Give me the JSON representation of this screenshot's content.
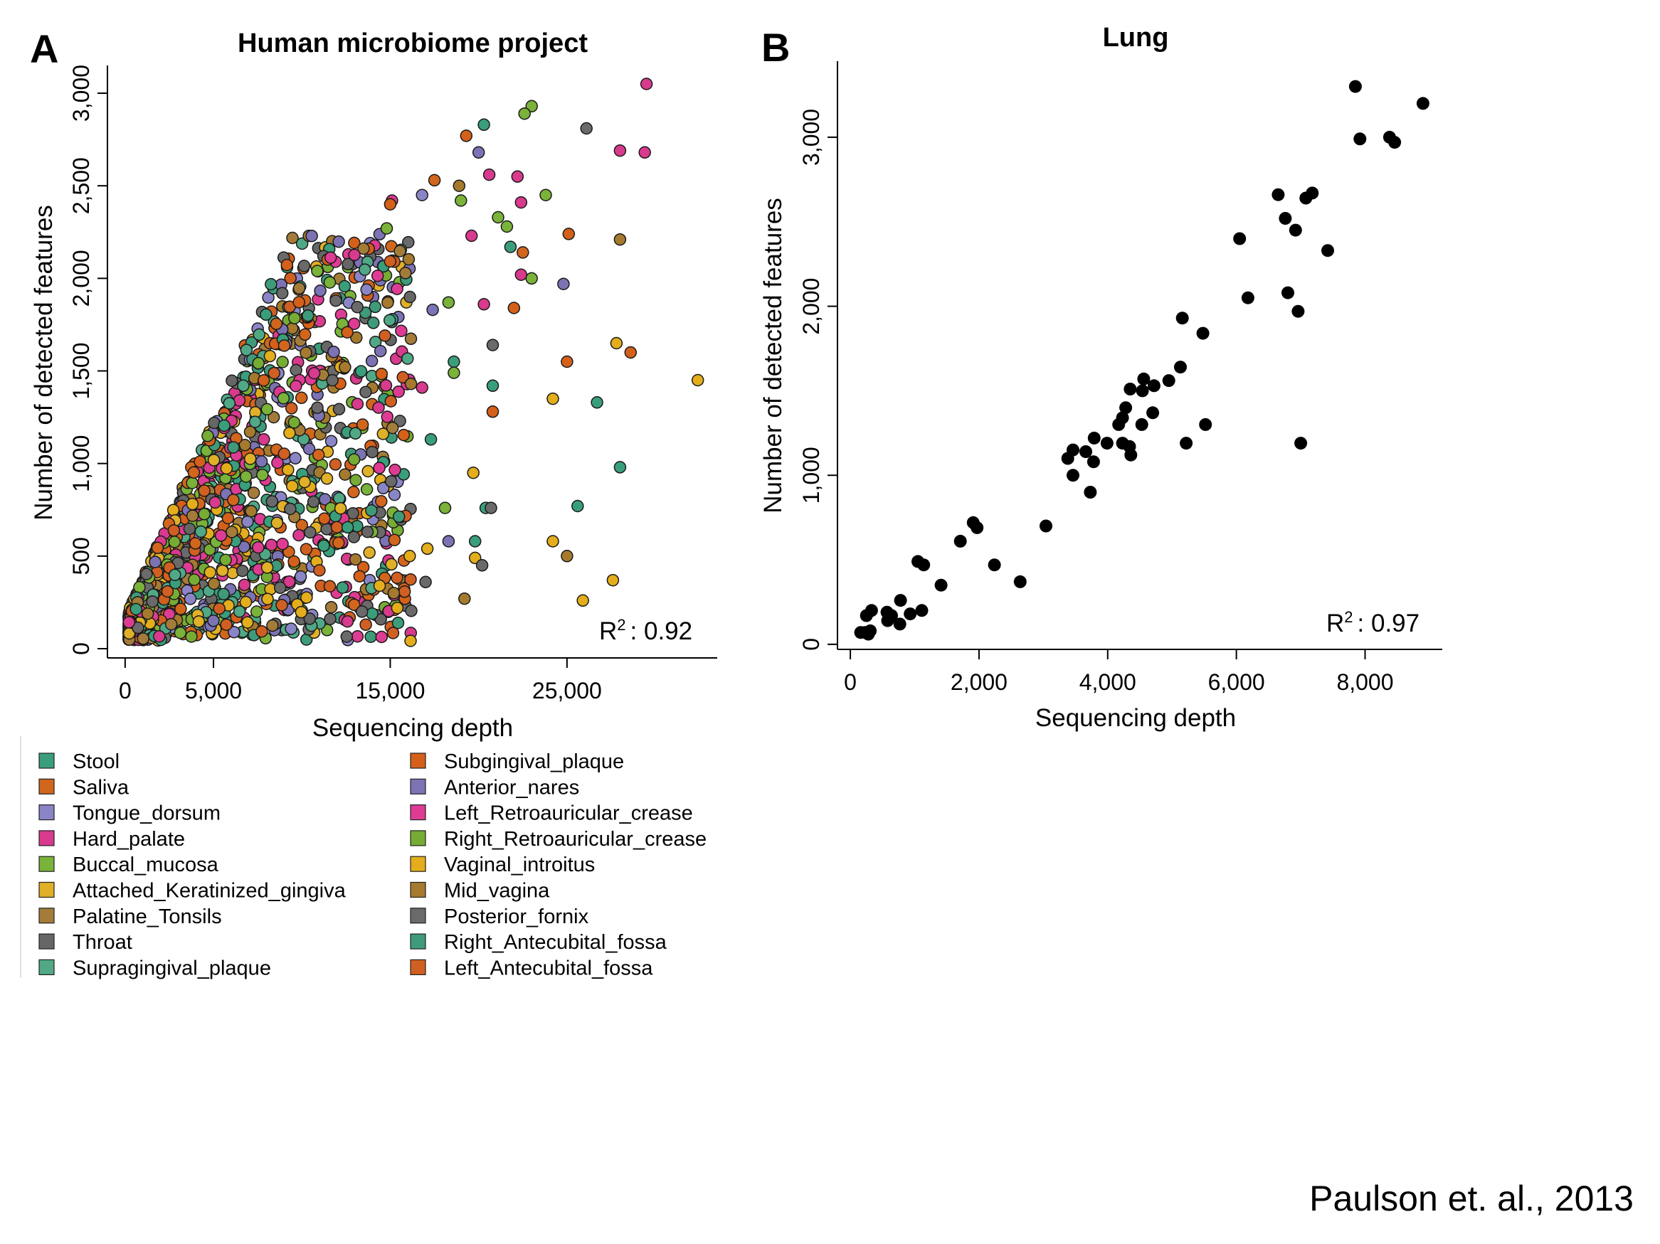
{
  "chart_data": [
    {
      "type": "scatter",
      "panel": "A",
      "title": "Human microbiome project",
      "xlabel": "Sequencing depth",
      "ylabel": "Number of detected features",
      "xticks": [
        "0",
        "5,000",
        "15,000",
        "25,000"
      ],
      "xtick_values": [
        0,
        5000,
        15000,
        25000
      ],
      "yticks": [
        "0",
        "500",
        "1,000",
        "1,500",
        "2,000",
        "2,500",
        "3,000"
      ],
      "ytick_values": [
        0,
        500,
        1000,
        1500,
        2000,
        2500,
        3000
      ],
      "xlim": [
        -1000,
        33500
      ],
      "ylim": [
        -50,
        3150
      ],
      "r2_label": "R",
      "r2_sup": "2",
      "r2_value": ": 0.92",
      "legend_position": "below",
      "series": [
        {
          "name": "Stool",
          "color": "#3a9e7a"
        },
        {
          "name": "Subgingival_plaque",
          "color": "#d4601a"
        },
        {
          "name": "Saliva",
          "color": "#d2661d"
        },
        {
          "name": "Anterior_nares",
          "color": "#7c73b5"
        },
        {
          "name": "Tongue_dorsum",
          "color": "#8a85c6"
        },
        {
          "name": "Left_Retroauricular_crease",
          "color": "#de3c93"
        },
        {
          "name": "Hard_palate",
          "color": "#d83a8d"
        },
        {
          "name": "Right_Retroauricular_crease",
          "color": "#76ac34"
        },
        {
          "name": "Buccal_mucosa",
          "color": "#7ab23a"
        },
        {
          "name": "Vaginal_introitus",
          "color": "#e3ad1c"
        },
        {
          "name": "Attached_Keratinized_gingiva",
          "color": "#e0b028"
        },
        {
          "name": "Mid_vagina",
          "color": "#a57a2e"
        },
        {
          "name": "Palatine_Tonsils",
          "color": "#a47c3a"
        },
        {
          "name": "Posterior_fornix",
          "color": "#6a6a6a"
        },
        {
          "name": "Throat",
          "color": "#666666"
        },
        {
          "name": "Right_Antecubital_fossa",
          "color": "#3f9a7a"
        },
        {
          "name": "Supragingival_plaque",
          "color": "#50a886"
        },
        {
          "name": "Left_Antecubital_fossa",
          "color": "#d06022"
        }
      ],
      "highlight_points": [
        {
          "x": 29500,
          "y": 3050,
          "c": 6
        },
        {
          "x": 23000,
          "y": 2930,
          "c": 8
        },
        {
          "x": 22600,
          "y": 2890,
          "c": 8
        },
        {
          "x": 20300,
          "y": 2830,
          "c": 0
        },
        {
          "x": 26100,
          "y": 2810,
          "c": 13
        },
        {
          "x": 19300,
          "y": 2770,
          "c": 1
        },
        {
          "x": 28000,
          "y": 2690,
          "c": 6
        },
        {
          "x": 29400,
          "y": 2680,
          "c": 6
        },
        {
          "x": 20000,
          "y": 2680,
          "c": 3
        },
        {
          "x": 20600,
          "y": 2560,
          "c": 6
        },
        {
          "x": 22200,
          "y": 2550,
          "c": 6
        },
        {
          "x": 17500,
          "y": 2530,
          "c": 2
        },
        {
          "x": 18900,
          "y": 2500,
          "c": 11
        },
        {
          "x": 23800,
          "y": 2450,
          "c": 8
        },
        {
          "x": 16800,
          "y": 2450,
          "c": 4
        },
        {
          "x": 15100,
          "y": 2420,
          "c": 6
        },
        {
          "x": 19000,
          "y": 2420,
          "c": 8
        },
        {
          "x": 22400,
          "y": 2410,
          "c": 6
        },
        {
          "x": 15000,
          "y": 2400,
          "c": 1
        },
        {
          "x": 21100,
          "y": 2330,
          "c": 8
        },
        {
          "x": 21600,
          "y": 2280,
          "c": 8
        },
        {
          "x": 14800,
          "y": 2270,
          "c": 8
        },
        {
          "x": 25100,
          "y": 2240,
          "c": 1
        },
        {
          "x": 19600,
          "y": 2230,
          "c": 6
        },
        {
          "x": 28000,
          "y": 2210,
          "c": 11
        },
        {
          "x": 21800,
          "y": 2170,
          "c": 0
        },
        {
          "x": 22500,
          "y": 2140,
          "c": 2
        },
        {
          "x": 23000,
          "y": 2000,
          "c": 8
        },
        {
          "x": 24800,
          "y": 1970,
          "c": 3
        },
        {
          "x": 22400,
          "y": 2020,
          "c": 6
        },
        {
          "x": 20300,
          "y": 1860,
          "c": 6
        },
        {
          "x": 22000,
          "y": 1840,
          "c": 1
        },
        {
          "x": 17400,
          "y": 1830,
          "c": 3
        },
        {
          "x": 18300,
          "y": 1870,
          "c": 8
        },
        {
          "x": 20800,
          "y": 1640,
          "c": 13
        },
        {
          "x": 27800,
          "y": 1650,
          "c": 9
        },
        {
          "x": 28600,
          "y": 1600,
          "c": 1
        },
        {
          "x": 25000,
          "y": 1550,
          "c": 1
        },
        {
          "x": 18600,
          "y": 1550,
          "c": 0
        },
        {
          "x": 18600,
          "y": 1490,
          "c": 8
        },
        {
          "x": 32400,
          "y": 1450,
          "c": 9
        },
        {
          "x": 20800,
          "y": 1420,
          "c": 0
        },
        {
          "x": 16800,
          "y": 1410,
          "c": 6
        },
        {
          "x": 24200,
          "y": 1350,
          "c": 9
        },
        {
          "x": 26700,
          "y": 1330,
          "c": 0
        },
        {
          "x": 20800,
          "y": 1280,
          "c": 1
        },
        {
          "x": 17300,
          "y": 1130,
          "c": 0
        },
        {
          "x": 19700,
          "y": 950,
          "c": 9
        },
        {
          "x": 28000,
          "y": 980,
          "c": 0
        },
        {
          "x": 20400,
          "y": 760,
          "c": 0
        },
        {
          "x": 20700,
          "y": 760,
          "c": 13
        },
        {
          "x": 25600,
          "y": 770,
          "c": 0
        },
        {
          "x": 18100,
          "y": 760,
          "c": 8
        },
        {
          "x": 18300,
          "y": 580,
          "c": 3
        },
        {
          "x": 19800,
          "y": 580,
          "c": 0
        },
        {
          "x": 24200,
          "y": 580,
          "c": 9
        },
        {
          "x": 25000,
          "y": 500,
          "c": 11
        },
        {
          "x": 19800,
          "y": 490,
          "c": 9
        },
        {
          "x": 20200,
          "y": 450,
          "c": 13
        },
        {
          "x": 17100,
          "y": 540,
          "c": 9
        },
        {
          "x": 16100,
          "y": 500,
          "c": 9
        },
        {
          "x": 27600,
          "y": 370,
          "c": 9
        },
        {
          "x": 25900,
          "y": 260,
          "c": 9
        },
        {
          "x": 19200,
          "y": 270,
          "c": 11
        },
        {
          "x": 17000,
          "y": 360,
          "c": 13
        },
        {
          "x": 15200,
          "y": 300,
          "c": 11
        },
        {
          "x": 15400,
          "y": 220,
          "c": 9
        },
        {
          "x": 13400,
          "y": 200,
          "c": 13
        },
        {
          "x": 11600,
          "y": 160,
          "c": 13
        },
        {
          "x": 14400,
          "y": 340,
          "c": 9
        },
        {
          "x": 12300,
          "y": 330,
          "c": 0
        }
      ]
    },
    {
      "type": "scatter",
      "panel": "B",
      "title": "Lung",
      "xlabel": "Sequencing depth",
      "ylabel": "Number of detected features",
      "xticks": [
        "0",
        "2,000",
        "4,000",
        "6,000",
        "8,000"
      ],
      "xtick_values": [
        0,
        2000,
        4000,
        6000,
        8000
      ],
      "yticks": [
        "0",
        "1,000",
        "2,000",
        "3,000"
      ],
      "ytick_values": [
        0,
        1000,
        2000,
        3000
      ],
      "xlim": [
        -200,
        9200
      ],
      "ylim": [
        -30,
        3450
      ],
      "r2_label": "R",
      "r2_sup": "2",
      "r2_value": ": 0.97",
      "point_color": "#000000",
      "points": [
        {
          "x": 7850,
          "y": 3300
        },
        {
          "x": 8900,
          "y": 3200
        },
        {
          "x": 7920,
          "y": 2990
        },
        {
          "x": 8380,
          "y": 3000
        },
        {
          "x": 8460,
          "y": 2970
        },
        {
          "x": 6650,
          "y": 2660
        },
        {
          "x": 7080,
          "y": 2640
        },
        {
          "x": 7180,
          "y": 2670
        },
        {
          "x": 6760,
          "y": 2520
        },
        {
          "x": 6920,
          "y": 2450
        },
        {
          "x": 6050,
          "y": 2400
        },
        {
          "x": 7420,
          "y": 2330
        },
        {
          "x": 6800,
          "y": 2080
        },
        {
          "x": 6180,
          "y": 2050
        },
        {
          "x": 6960,
          "y": 1970
        },
        {
          "x": 5160,
          "y": 1930
        },
        {
          "x": 5480,
          "y": 1840
        },
        {
          "x": 5130,
          "y": 1640
        },
        {
          "x": 4950,
          "y": 1560
        },
        {
          "x": 4560,
          "y": 1570
        },
        {
          "x": 4720,
          "y": 1530
        },
        {
          "x": 4350,
          "y": 1510
        },
        {
          "x": 4540,
          "y": 1500
        },
        {
          "x": 4280,
          "y": 1400
        },
        {
          "x": 4700,
          "y": 1370
        },
        {
          "x": 4230,
          "y": 1340
        },
        {
          "x": 4170,
          "y": 1300
        },
        {
          "x": 4530,
          "y": 1300
        },
        {
          "x": 5520,
          "y": 1300
        },
        {
          "x": 3790,
          "y": 1220
        },
        {
          "x": 3990,
          "y": 1190
        },
        {
          "x": 4230,
          "y": 1190
        },
        {
          "x": 5220,
          "y": 1190
        },
        {
          "x": 7000,
          "y": 1190
        },
        {
          "x": 4340,
          "y": 1170
        },
        {
          "x": 3460,
          "y": 1150
        },
        {
          "x": 3660,
          "y": 1140
        },
        {
          "x": 4360,
          "y": 1120
        },
        {
          "x": 3380,
          "y": 1100
        },
        {
          "x": 3780,
          "y": 1080
        },
        {
          "x": 3460,
          "y": 1000
        },
        {
          "x": 3730,
          "y": 900
        },
        {
          "x": 3040,
          "y": 700
        },
        {
          "x": 1910,
          "y": 720
        },
        {
          "x": 1970,
          "y": 690
        },
        {
          "x": 1710,
          "y": 610
        },
        {
          "x": 1050,
          "y": 490
        },
        {
          "x": 1140,
          "y": 470
        },
        {
          "x": 2240,
          "y": 470
        },
        {
          "x": 2640,
          "y": 370
        },
        {
          "x": 1410,
          "y": 350
        },
        {
          "x": 780,
          "y": 260
        },
        {
          "x": 1110,
          "y": 200
        },
        {
          "x": 330,
          "y": 200
        },
        {
          "x": 570,
          "y": 190
        },
        {
          "x": 930,
          "y": 180
        },
        {
          "x": 250,
          "y": 170
        },
        {
          "x": 640,
          "y": 170
        },
        {
          "x": 580,
          "y": 140
        },
        {
          "x": 770,
          "y": 120
        },
        {
          "x": 160,
          "y": 70
        },
        {
          "x": 230,
          "y": 70
        },
        {
          "x": 310,
          "y": 80
        },
        {
          "x": 280,
          "y": 60
        }
      ]
    }
  ],
  "citation": "Paulson et. al., 2013"
}
